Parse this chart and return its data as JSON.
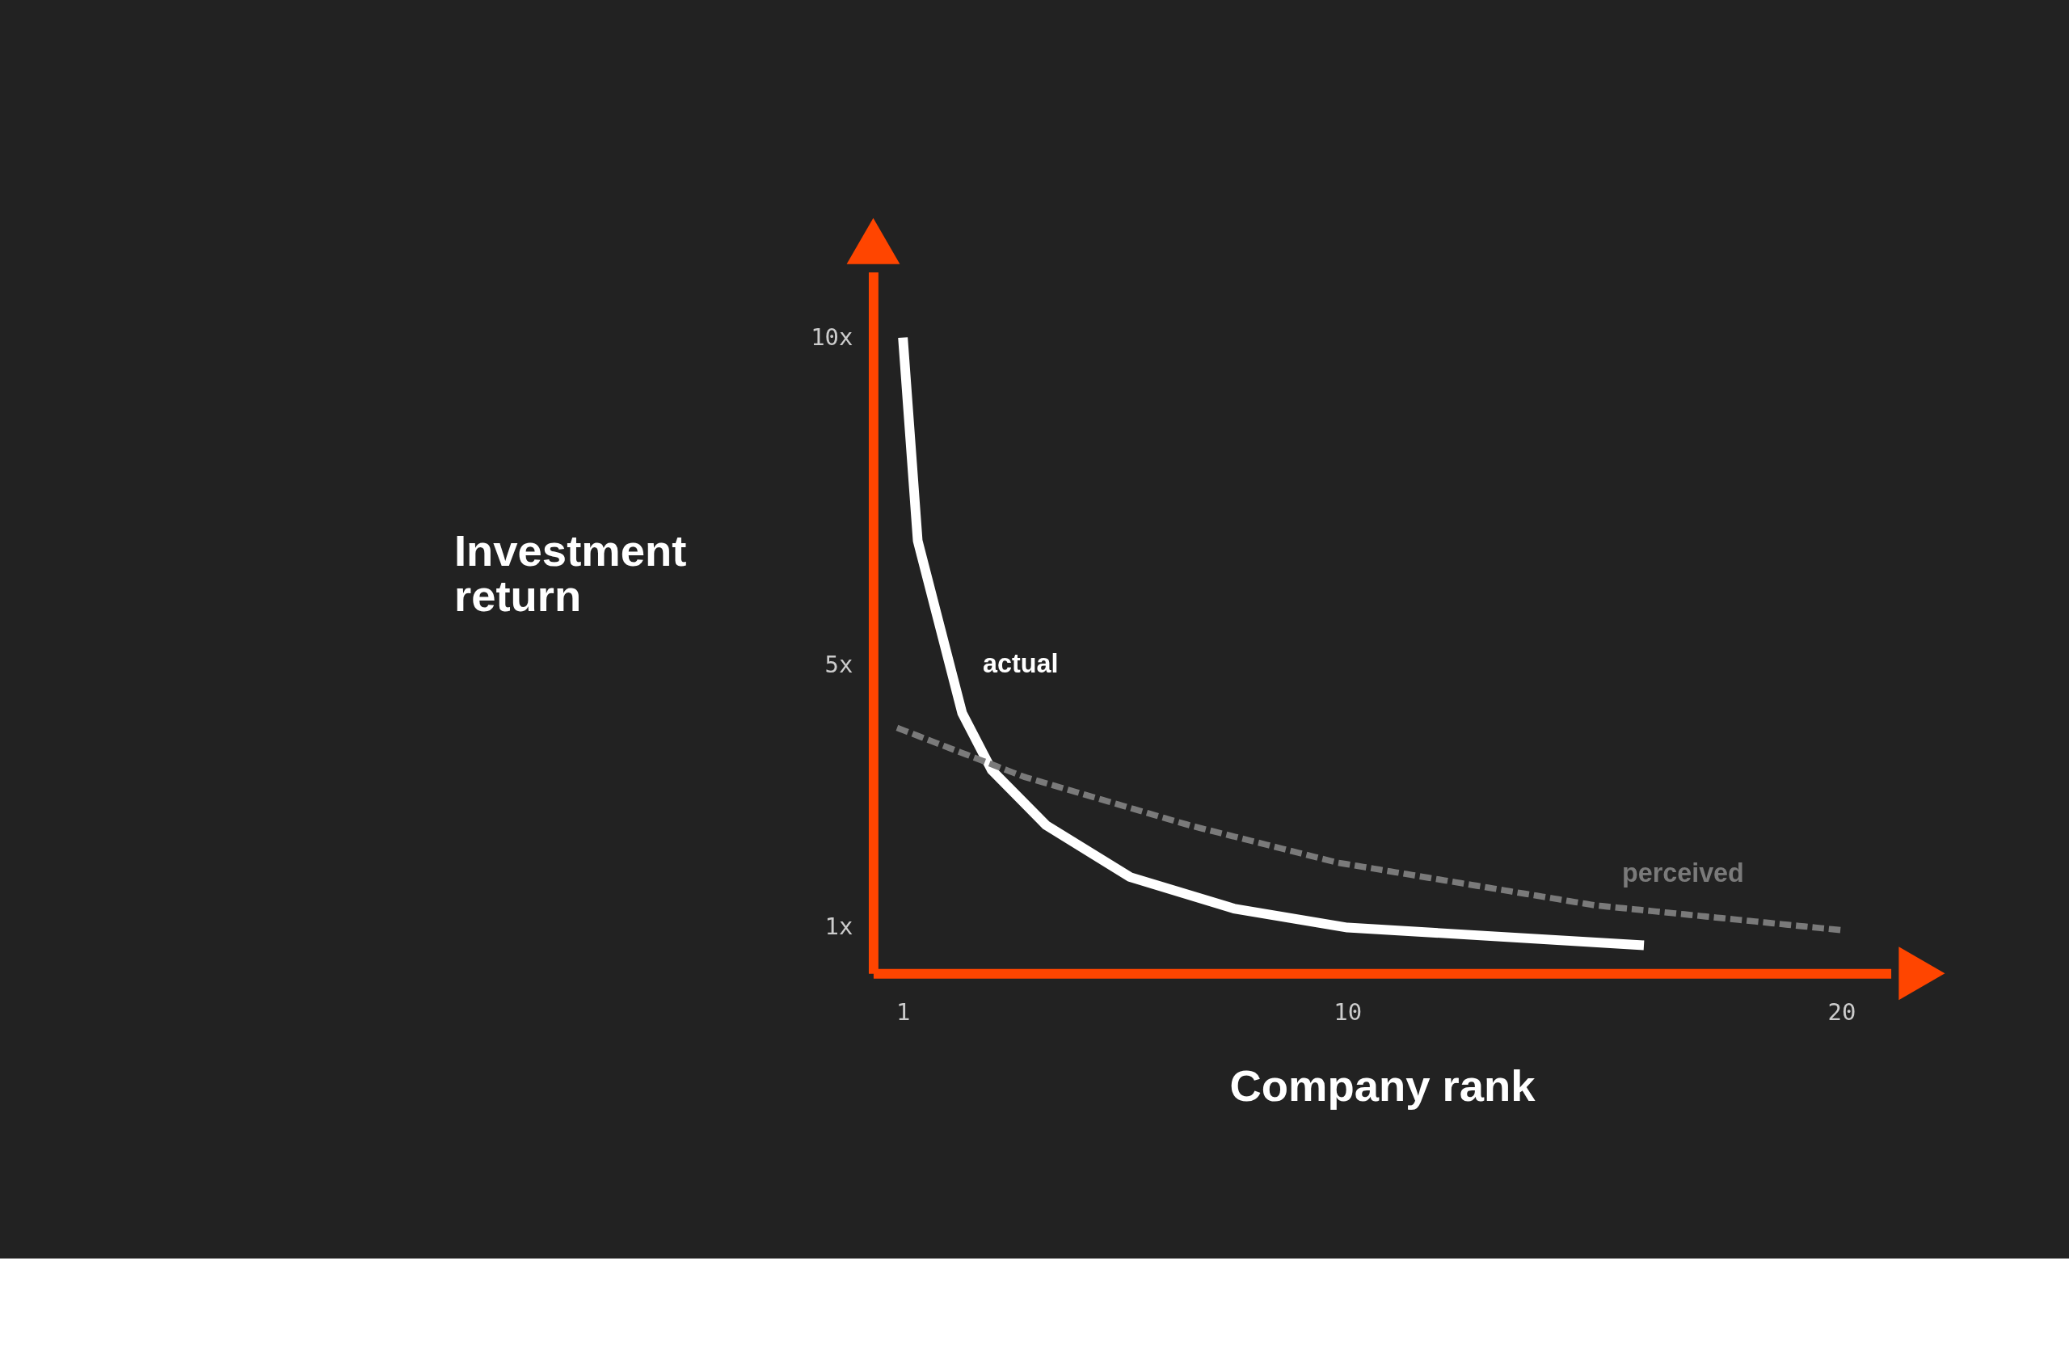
{
  "chart_data": {
    "type": "line",
    "xlabel": "Company rank",
    "ylabel": "Investment return",
    "xlim": [
      0.4,
      21
    ],
    "ylim": [
      0.3,
      11
    ],
    "xticks": [
      1,
      10,
      20
    ],
    "yticks": [
      {
        "value": 1,
        "label": "1x"
      },
      {
        "value": 5,
        "label": "5x"
      },
      {
        "value": 10,
        "label": "10x"
      }
    ],
    "grid": false,
    "series": [
      {
        "name": "actual",
        "color": "#ffffff",
        "line_style": "solid",
        "x": [
          1,
          1.3,
          2.2,
          2.8,
          3.9,
          5.6,
          7.7,
          10,
          12.9,
          16
        ],
        "values": [
          10,
          6.9,
          4.27,
          3.4,
          2.56,
          1.77,
          1.29,
          1.0,
          0.87,
          0.73
        ]
      },
      {
        "name": "perceived",
        "color": "#7a7a7a",
        "line_style": "dotted",
        "x": [
          0.94,
          3.45,
          6.8,
          9.8,
          15,
          20
        ],
        "values": [
          4.03,
          3.3,
          2.56,
          1.99,
          1.34,
          0.96
        ]
      }
    ]
  }
}
